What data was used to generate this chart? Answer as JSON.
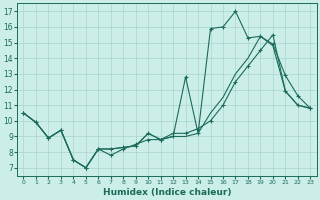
{
  "xlabel": "Humidex (Indice chaleur)",
  "bg_color": "#cceee8",
  "grid_color": "#aad4ce",
  "line_color": "#1a6b5a",
  "xlim": [
    -0.5,
    23.5
  ],
  "ylim": [
    6.5,
    17.5
  ],
  "xticks": [
    0,
    1,
    2,
    3,
    4,
    5,
    6,
    7,
    8,
    9,
    10,
    11,
    12,
    13,
    14,
    15,
    16,
    17,
    18,
    19,
    20,
    21,
    22,
    23
  ],
  "yticks": [
    7,
    8,
    9,
    10,
    11,
    12,
    13,
    14,
    15,
    16,
    17
  ],
  "line1_x": [
    0,
    1,
    2,
    3,
    4,
    5,
    6,
    7,
    8,
    9,
    10,
    11,
    12,
    13,
    14,
    15,
    16,
    17,
    18,
    19,
    20,
    21,
    22,
    23
  ],
  "line1_y": [
    10.5,
    9.9,
    8.9,
    9.4,
    7.5,
    7.0,
    8.2,
    7.8,
    8.2,
    8.5,
    8.8,
    8.8,
    9.0,
    12.8,
    9.2,
    15.9,
    16.0,
    17.0,
    15.3,
    15.4,
    14.9,
    12.9,
    11.6,
    10.8
  ],
  "line2_x": [
    0,
    1,
    2,
    3,
    4,
    5,
    6,
    7,
    8,
    9,
    10,
    11,
    12,
    13,
    14,
    15,
    16,
    17,
    18,
    19,
    20,
    21,
    22,
    23
  ],
  "line2_y": [
    10.5,
    9.9,
    8.9,
    9.4,
    7.5,
    7.0,
    8.2,
    8.2,
    8.3,
    8.4,
    9.2,
    8.8,
    9.0,
    9.0,
    9.2,
    10.5,
    11.5,
    13.0,
    14.0,
    15.4,
    14.8,
    11.9,
    11.0,
    10.8
  ],
  "line3_x": [
    0,
    1,
    2,
    3,
    4,
    5,
    6,
    7,
    8,
    9,
    10,
    11,
    12,
    13,
    14,
    15,
    16,
    17,
    18,
    19,
    20,
    21,
    22,
    23
  ],
  "line3_y": [
    10.5,
    9.9,
    8.9,
    9.4,
    7.5,
    7.0,
    8.2,
    8.2,
    8.3,
    8.4,
    9.2,
    8.8,
    9.2,
    9.2,
    9.5,
    10.0,
    11.0,
    12.5,
    13.5,
    14.5,
    15.5,
    11.9,
    11.0,
    10.8
  ]
}
